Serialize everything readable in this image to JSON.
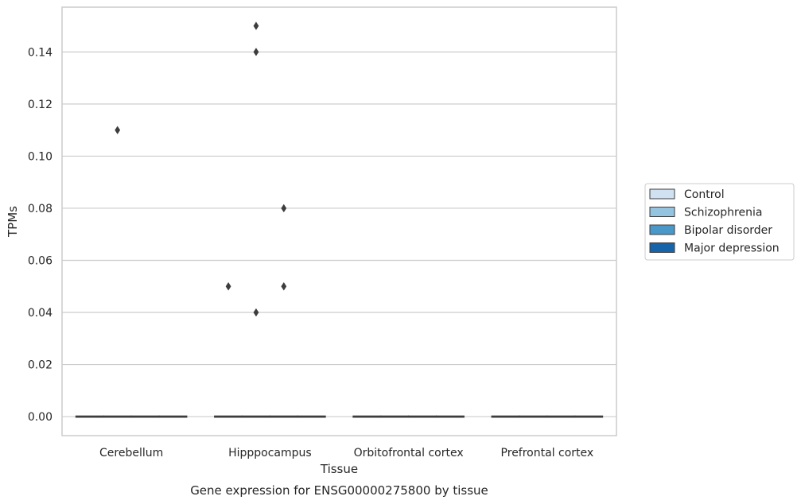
{
  "chart_data": {
    "type": "box",
    "title": "",
    "caption": "Gene expression for ENSG00000275800 by tissue",
    "xlabel": "Tissue",
    "ylabel": "TPMs",
    "ylim": [
      -0.0073,
      0.1572
    ],
    "yticks": [
      0.0,
      0.02,
      0.04,
      0.06,
      0.08,
      0.1,
      0.12,
      0.14
    ],
    "ytick_labels": [
      "0.00",
      "0.02",
      "0.04",
      "0.06",
      "0.08",
      "0.10",
      "0.12",
      "0.14"
    ],
    "grid": true,
    "legend_position": "right",
    "categories": [
      "Cerebellum",
      "Hipppocampus",
      "Orbitofrontal cortex",
      "Prefrontal cortex"
    ],
    "series": [
      {
        "name": "Control",
        "color": "#d0e1f2",
        "boxes": [
          {
            "median": 0,
            "q1": 0,
            "q3": 0
          },
          {
            "median": 0,
            "q1": 0,
            "q3": 0
          },
          {
            "median": 0,
            "q1": 0,
            "q3": 0
          },
          {
            "median": 0,
            "q1": 0,
            "q3": 0
          }
        ],
        "outliers": [
          [],
          [
            0.05
          ],
          [],
          []
        ]
      },
      {
        "name": "Schizophrenia",
        "color": "#94c4df",
        "boxes": [
          {
            "median": 0,
            "q1": 0,
            "q3": 0
          },
          {
            "median": 0,
            "q1": 0,
            "q3": 0
          },
          {
            "median": 0,
            "q1": 0,
            "q3": 0
          },
          {
            "median": 0,
            "q1": 0,
            "q3": 0
          }
        ],
        "outliers": [
          [
            0.11
          ],
          [
            0.15,
            0.14,
            0.04
          ],
          [],
          []
        ]
      },
      {
        "name": "Bipolar disorder",
        "color": "#4a98c9",
        "boxes": [
          {
            "median": 0,
            "q1": 0,
            "q3": 0
          },
          {
            "median": 0,
            "q1": 0,
            "q3": 0
          },
          {
            "median": 0,
            "q1": 0,
            "q3": 0
          },
          {
            "median": 0,
            "q1": 0,
            "q3": 0
          }
        ],
        "outliers": [
          [],
          [
            0.08,
            0.05
          ],
          [],
          []
        ]
      },
      {
        "name": "Major depression",
        "color": "#1764ab",
        "boxes": [
          {
            "median": 0,
            "q1": 0,
            "q3": 0
          },
          {
            "median": 0,
            "q1": 0,
            "q3": 0
          },
          {
            "median": 0,
            "q1": 0,
            "q3": 0
          },
          {
            "median": 0,
            "q1": 0,
            "q3": 0
          }
        ],
        "outliers": [
          [],
          [],
          [],
          []
        ]
      }
    ]
  }
}
